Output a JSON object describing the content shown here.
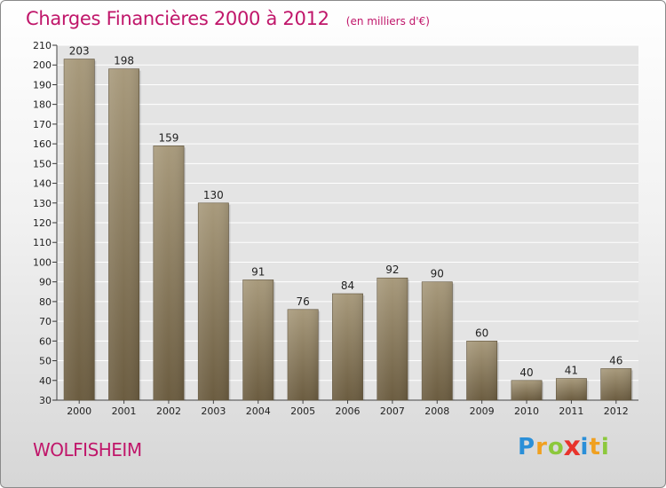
{
  "chart_data": {
    "type": "bar",
    "title": "Charges Financières 2000 à 2012",
    "unit_note": "(en milliers d'€)",
    "categories": [
      "2000",
      "2001",
      "2002",
      "2003",
      "2004",
      "2005",
      "2006",
      "2007",
      "2008",
      "2009",
      "2010",
      "2011",
      "2012"
    ],
    "values": [
      203,
      198,
      159,
      130,
      91,
      76,
      84,
      92,
      90,
      60,
      40,
      41,
      46
    ],
    "ylim": [
      30,
      210
    ],
    "yticks": [
      30,
      40,
      50,
      60,
      70,
      80,
      90,
      100,
      110,
      120,
      130,
      140,
      150,
      160,
      170,
      180,
      190,
      200,
      210
    ],
    "grid": true,
    "data_labels": true
  },
  "footer": {
    "town": "WOLFISHEIM",
    "logo": {
      "letters": [
        "P",
        "r",
        "o",
        "x",
        "i",
        "t",
        "i"
      ],
      "colors": [
        "#2a8fd8",
        "#f0a020",
        "#8cc83c",
        "#e8342c",
        "#2a8fd8",
        "#f0a020",
        "#8cc83c"
      ]
    }
  },
  "colors": {
    "bar_top": "#a89a7c",
    "bar_bottom": "#6b5c40",
    "grid": "#ffffff",
    "plot_bg": "#e4e4e4",
    "title": "#c0166a"
  }
}
